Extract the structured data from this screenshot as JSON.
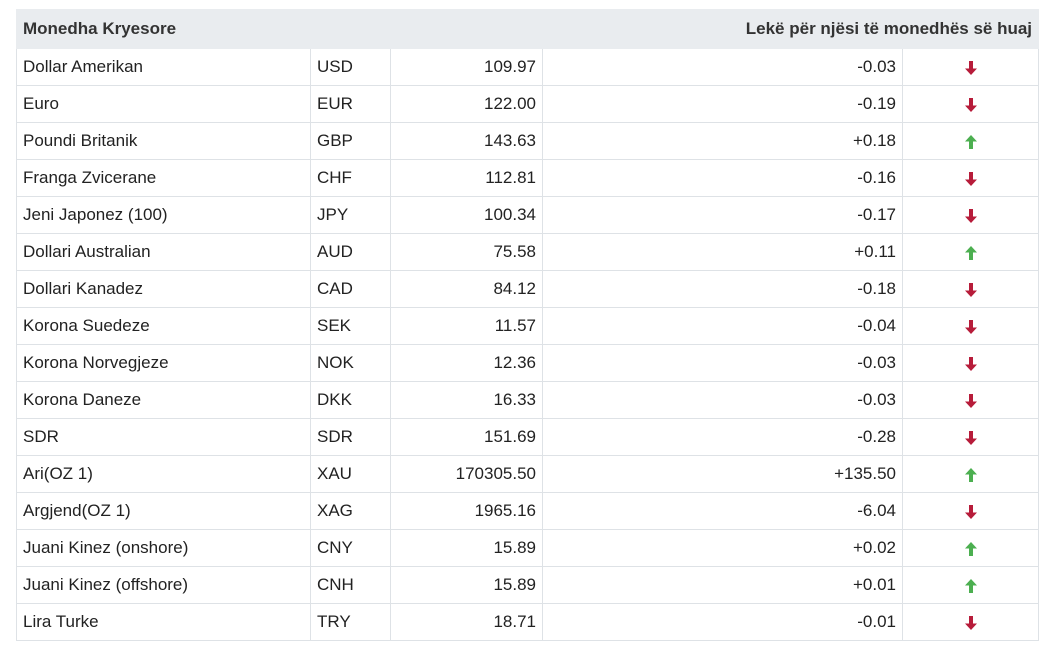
{
  "table": {
    "header": {
      "left": "Monedha Kryesore",
      "right": "Lekë për njësi të monedhës së huaj"
    },
    "colors": {
      "up": "#4caf50",
      "down": "#b71c3a"
    },
    "rows": [
      {
        "name": "Dollar Amerikan",
        "code": "USD",
        "rate": "109.97",
        "change": "-0.03",
        "trend": "down"
      },
      {
        "name": "Euro",
        "code": "EUR",
        "rate": "122.00",
        "change": "-0.19",
        "trend": "down"
      },
      {
        "name": "Poundi Britanik",
        "code": "GBP",
        "rate": "143.63",
        "change": "+0.18",
        "trend": "up"
      },
      {
        "name": "Franga Zvicerane",
        "code": "CHF",
        "rate": "112.81",
        "change": "-0.16",
        "trend": "down"
      },
      {
        "name": "Jeni Japonez (100)",
        "code": "JPY",
        "rate": "100.34",
        "change": "-0.17",
        "trend": "down"
      },
      {
        "name": "Dollari Australian",
        "code": "AUD",
        "rate": "75.58",
        "change": "+0.11",
        "trend": "up"
      },
      {
        "name": "Dollari Kanadez",
        "code": "CAD",
        "rate": "84.12",
        "change": "-0.18",
        "trend": "down"
      },
      {
        "name": "Korona Suedeze",
        "code": "SEK",
        "rate": "11.57",
        "change": "-0.04",
        "trend": "down"
      },
      {
        "name": "Korona Norvegjeze",
        "code": "NOK",
        "rate": "12.36",
        "change": "-0.03",
        "trend": "down"
      },
      {
        "name": "Korona Daneze",
        "code": "DKK",
        "rate": "16.33",
        "change": "-0.03",
        "trend": "down"
      },
      {
        "name": "SDR",
        "code": "SDR",
        "rate": "151.69",
        "change": "-0.28",
        "trend": "down"
      },
      {
        "name": "Ari(OZ 1)",
        "code": "XAU",
        "rate": "170305.50",
        "change": "+135.50",
        "trend": "up"
      },
      {
        "name": "Argjend(OZ 1)",
        "code": "XAG",
        "rate": "1965.16",
        "change": "-6.04",
        "trend": "down"
      },
      {
        "name": "Juani Kinez (onshore)",
        "code": "CNY",
        "rate": "15.89",
        "change": "+0.02",
        "trend": "up"
      },
      {
        "name": "Juani Kinez (offshore)",
        "code": "CNH",
        "rate": "15.89",
        "change": "+0.01",
        "trend": "up"
      },
      {
        "name": "Lira Turke",
        "code": "TRY",
        "rate": "18.71",
        "change": "-0.01",
        "trend": "down"
      }
    ]
  }
}
